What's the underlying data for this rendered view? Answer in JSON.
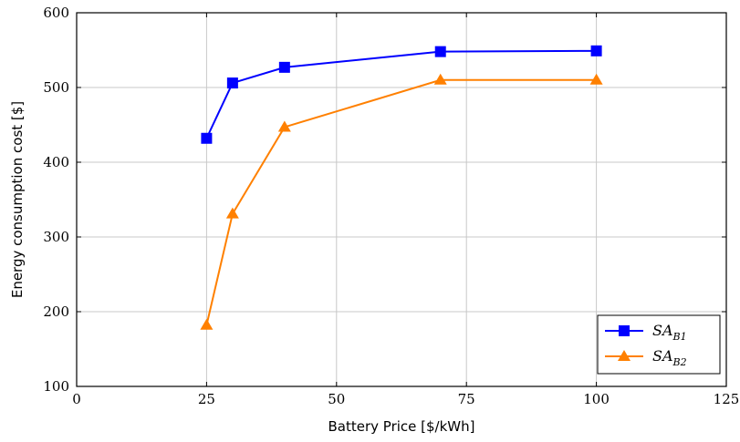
{
  "chart_data": {
    "type": "line",
    "xlabel": "Battery Price [$/kWh]",
    "ylabel": "Energy consumption cost [$]",
    "xlim": [
      0,
      125
    ],
    "ylim": [
      100,
      600
    ],
    "xticks": [
      "0",
      "25",
      "50",
      "75",
      "100",
      "125"
    ],
    "yticks": [
      "100",
      "200",
      "300",
      "400",
      "500",
      "600"
    ],
    "grid": true,
    "legend_position": "bottom-right",
    "series": [
      {
        "name": "SA",
        "subscript": "B1",
        "color": "#0000ff",
        "marker": "square",
        "x": [
          25,
          30,
          40,
          70,
          100
        ],
        "y": [
          432,
          506,
          527,
          548,
          549
        ]
      },
      {
        "name": "SA",
        "subscript": "B2",
        "color": "#ff8000",
        "marker": "triangle",
        "x": [
          25,
          30,
          40,
          70,
          100
        ],
        "y": [
          182,
          331,
          447,
          510,
          510
        ]
      }
    ]
  }
}
